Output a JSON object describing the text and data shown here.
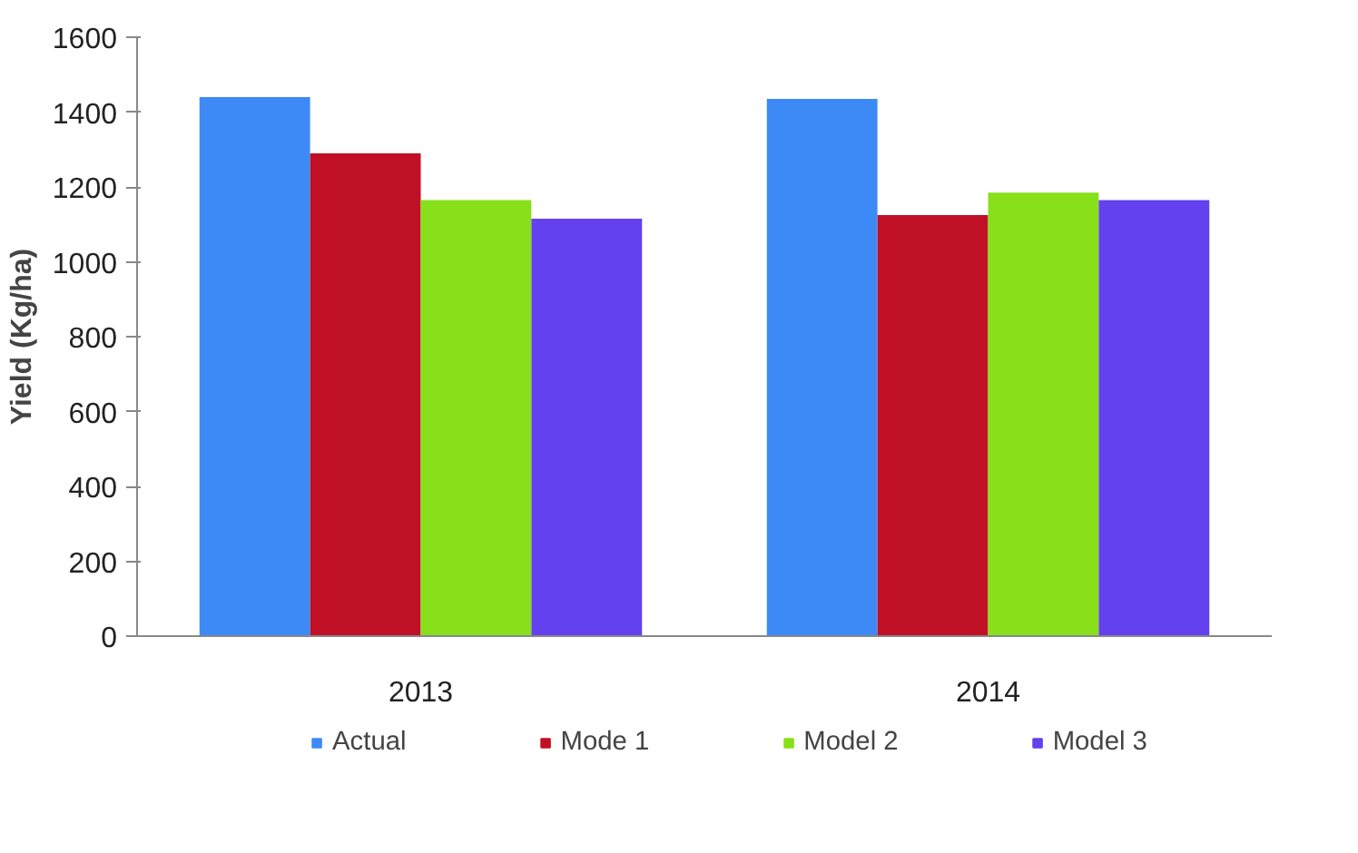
{
  "chart_data": {
    "type": "bar",
    "ylabel": "Yield (Kg/ha)",
    "categories": [
      "2013",
      "2014"
    ],
    "series": [
      {
        "name": "Actual",
        "color": "#3d8af7",
        "values": [
          1440,
          1435
        ]
      },
      {
        "name": "Mode 1",
        "color": "#c01025",
        "values": [
          1290,
          1125
        ]
      },
      {
        "name": "Model 2",
        "color": "#88e01a",
        "values": [
          1165,
          1185
        ]
      },
      {
        "name": "Model 3",
        "color": "#6441ee",
        "values": [
          1115,
          1165
        ]
      }
    ],
    "ylim": [
      0,
      1600
    ],
    "yticks": [
      0,
      200,
      400,
      600,
      800,
      1000,
      1200,
      1400,
      1600
    ],
    "grid": false,
    "legend": "bottom"
  }
}
